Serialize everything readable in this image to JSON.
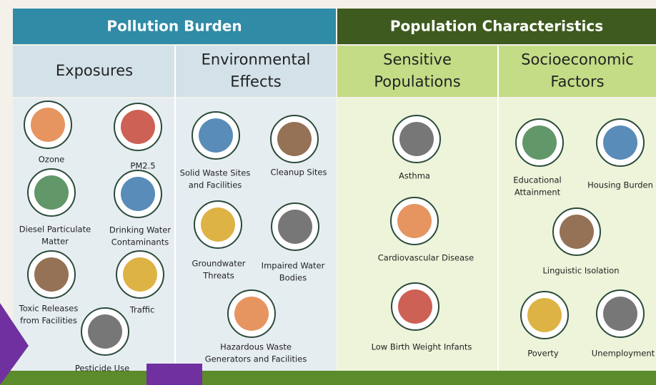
{
  "header": {
    "left": "Pollution Burden",
    "right": "Population Characteristics"
  },
  "columns": [
    {
      "title": [
        "Exposures"
      ],
      "items": [
        {
          "label": [
            "Ozone"
          ]
        },
        {
          "label": [
            "PM2.5"
          ]
        },
        {
          "label": [
            "Diesel Particulate",
            "Matter"
          ]
        },
        {
          "label": [
            "Drinking Water",
            "Contaminants"
          ]
        },
        {
          "label": [
            "Toxic Releases",
            "from Facilities"
          ]
        },
        {
          "label": [
            "Traffic"
          ]
        },
        {
          "label": [
            "Pesticide Use"
          ]
        }
      ]
    },
    {
      "title": [
        "Environmental",
        "Effects"
      ],
      "items": [
        {
          "label": [
            "Solid Waste Sites",
            "and Facilities"
          ]
        },
        {
          "label": [
            "Cleanup Sites"
          ]
        },
        {
          "label": [
            "Groundwater",
            "Threats"
          ]
        },
        {
          "label": [
            "Impaired Water",
            "Bodies"
          ]
        },
        {
          "label": [
            "Hazardous Waste",
            "Generators and Facilities"
          ]
        }
      ]
    },
    {
      "title": [
        "Sensitive",
        "Populations"
      ],
      "items": [
        {
          "label": [
            "Asthma"
          ]
        },
        {
          "label": [
            "Cardiovascular Disease"
          ]
        },
        {
          "label": [
            "Low Birth Weight Infants"
          ]
        }
      ]
    },
    {
      "title": [
        "Socioeconomic",
        "Factors"
      ],
      "items": [
        {
          "label": [
            "Educational",
            "Attainment"
          ]
        },
        {
          "label": [
            "Housing Burden"
          ]
        },
        {
          "label": [
            "Linguistic Isolation"
          ]
        },
        {
          "label": [
            "Poverty"
          ]
        },
        {
          "label": [
            "Unemployment"
          ]
        }
      ]
    }
  ]
}
